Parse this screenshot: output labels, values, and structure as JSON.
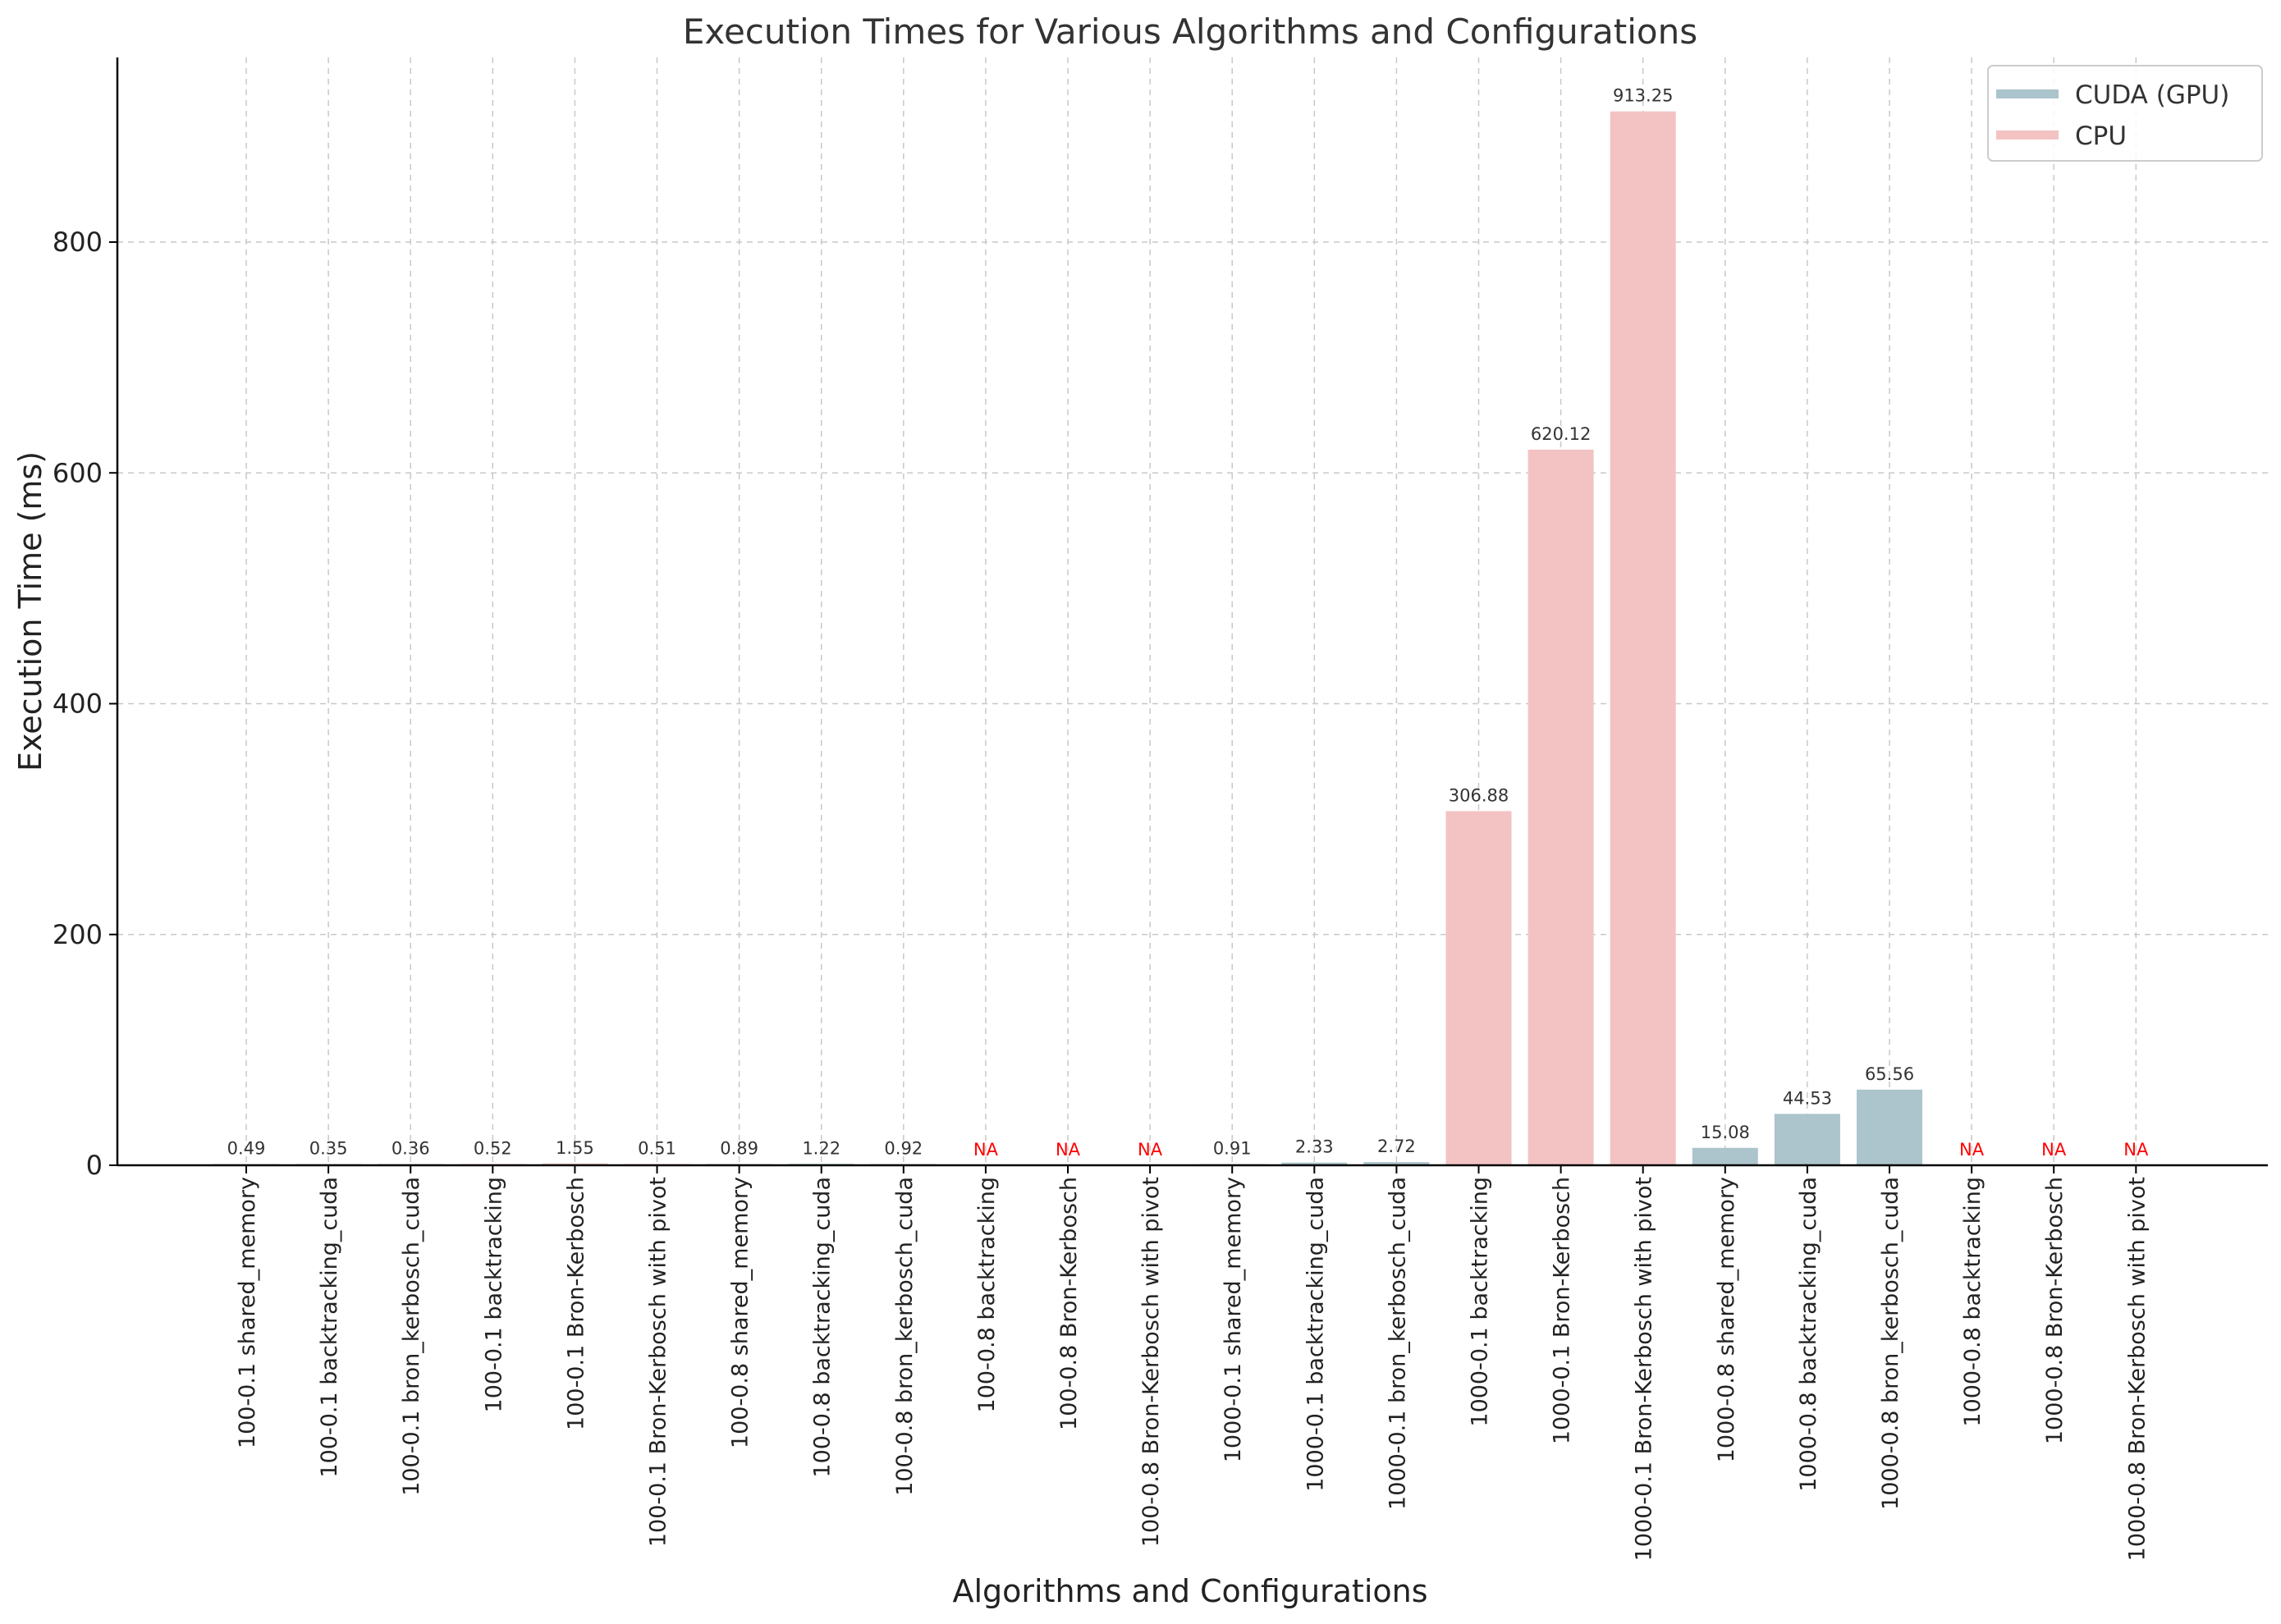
{
  "chart_data": {
    "type": "bar",
    "title": "Execution Times for Various Algorithms and Configurations",
    "xlabel": "Algorithms and Configurations",
    "ylabel": "Execution Time (ms)",
    "ylim": [
      0,
      960
    ],
    "yticks": [
      0,
      200,
      400,
      600,
      800
    ],
    "grid": true,
    "legend_position": "top-right",
    "legend": [
      {
        "name": "CUDA (GPU)",
        "color": "#acc4cb"
      },
      {
        "name": "CPU",
        "color": "#f3c3c4"
      }
    ],
    "na_label": "NA",
    "na_color": "#ff0000",
    "value_label_color": "#333333",
    "bars": [
      {
        "category": "100-0.1 shared_memory",
        "value": 0.49,
        "label": "0.49",
        "group": "CUDA (GPU)"
      },
      {
        "category": "100-0.1 backtracking_cuda",
        "value": 0.35,
        "label": "0.35",
        "group": "CUDA (GPU)"
      },
      {
        "category": "100-0.1 bron_kerbosch_cuda",
        "value": 0.36,
        "label": "0.36",
        "group": "CUDA (GPU)"
      },
      {
        "category": "100-0.1 backtracking",
        "value": 0.52,
        "label": "0.52",
        "group": "CPU"
      },
      {
        "category": "100-0.1 Bron-Kerbosch",
        "value": 1.55,
        "label": "1.55",
        "group": "CPU"
      },
      {
        "category": "100-0.1 Bron-Kerbosch with pivot",
        "value": 0.51,
        "label": "0.51",
        "group": "CPU"
      },
      {
        "category": "100-0.8 shared_memory",
        "value": 0.89,
        "label": "0.89",
        "group": "CUDA (GPU)"
      },
      {
        "category": "100-0.8 backtracking_cuda",
        "value": 1.22,
        "label": "1.22",
        "group": "CUDA (GPU)"
      },
      {
        "category": "100-0.8 bron_kerbosch_cuda",
        "value": 0.92,
        "label": "0.92",
        "group": "CUDA (GPU)"
      },
      {
        "category": "100-0.8 backtracking",
        "value": null,
        "label": "NA",
        "group": "CPU"
      },
      {
        "category": "100-0.8 Bron-Kerbosch",
        "value": null,
        "label": "NA",
        "group": "CPU"
      },
      {
        "category": "100-0.8 Bron-Kerbosch with pivot",
        "value": null,
        "label": "NA",
        "group": "CPU"
      },
      {
        "category": "1000-0.1 shared_memory",
        "value": 0.91,
        "label": "0.91",
        "group": "CUDA (GPU)"
      },
      {
        "category": "1000-0.1 backtracking_cuda",
        "value": 2.33,
        "label": "2.33",
        "group": "CUDA (GPU)"
      },
      {
        "category": "1000-0.1 bron_kerbosch_cuda",
        "value": 2.72,
        "label": "2.72",
        "group": "CUDA (GPU)"
      },
      {
        "category": "1000-0.1 backtracking",
        "value": 306.88,
        "label": "306.88",
        "group": "CPU"
      },
      {
        "category": "1000-0.1 Bron-Kerbosch",
        "value": 620.12,
        "label": "620.12",
        "group": "CPU"
      },
      {
        "category": "1000-0.1 Bron-Kerbosch with pivot",
        "value": 913.25,
        "label": "913.25",
        "group": "CPU"
      },
      {
        "category": "1000-0.8 shared_memory",
        "value": 15.08,
        "label": "15.08",
        "group": "CUDA (GPU)"
      },
      {
        "category": "1000-0.8 backtracking_cuda",
        "value": 44.53,
        "label": "44.53",
        "group": "CUDA (GPU)"
      },
      {
        "category": "1000-0.8 bron_kerbosch_cuda",
        "value": 65.56,
        "label": "65.56",
        "group": "CUDA (GPU)"
      },
      {
        "category": "1000-0.8 backtracking",
        "value": null,
        "label": "NA",
        "group": "CPU"
      },
      {
        "category": "1000-0.8 Bron-Kerbosch",
        "value": null,
        "label": "NA",
        "group": "CPU"
      },
      {
        "category": "1000-0.8 Bron-Kerbosch with pivot",
        "value": null,
        "label": "NA",
        "group": "CPU"
      }
    ]
  }
}
